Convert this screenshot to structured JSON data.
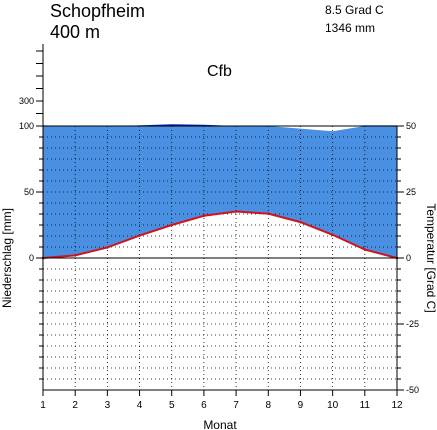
{
  "header": {
    "station": "Schopfheim",
    "elevation": "400 m",
    "mean_temp": "8.5 Grad C",
    "annual_precip": "1346 mm",
    "climate_class": "Cfb"
  },
  "colors": {
    "precip_fill": "#4a90e2",
    "precip_excess": "#0a1fd2",
    "temperature_line": "#d0141e",
    "dry_patch": "#ffffff"
  },
  "chart_data": {
    "type": "line",
    "xlabel": "Monat",
    "ylabel_left": "Niederschlag [mm]",
    "ylabel_right": "Temperatur [Grad C]",
    "x": [
      1,
      2,
      3,
      4,
      5,
      6,
      7,
      8,
      9,
      10,
      11,
      12
    ],
    "x_ticks": [
      "1",
      "2",
      "3",
      "4",
      "5",
      "6",
      "7",
      "8",
      "9",
      "10",
      "11",
      "12"
    ],
    "left_ticks": [
      "100",
      "50",
      "0"
    ],
    "left_ticks_compressed": [
      "300"
    ],
    "right_ticks": [
      "50",
      "25",
      "0",
      "-25",
      "-50"
    ],
    "precip_ylim": [
      0,
      100
    ],
    "precip_compressed_note": "above 100 mm scale compressed",
    "temp_ylim": [
      -50,
      50
    ],
    "series": [
      {
        "name": "",
        "kind": "temperature",
        "values": [
          0.0,
          1.0,
          4.0,
          8.5,
          12.5,
          16.0,
          17.6,
          16.8,
          13.6,
          8.8,
          3.2,
          0.0
        ]
      },
      {
        "name": "",
        "kind": "precipitation",
        "values": [
          101,
          100,
          100,
          101,
          103,
          102,
          100,
          100,
          98,
          96,
          101,
          101
        ]
      }
    ],
    "grid": true
  }
}
